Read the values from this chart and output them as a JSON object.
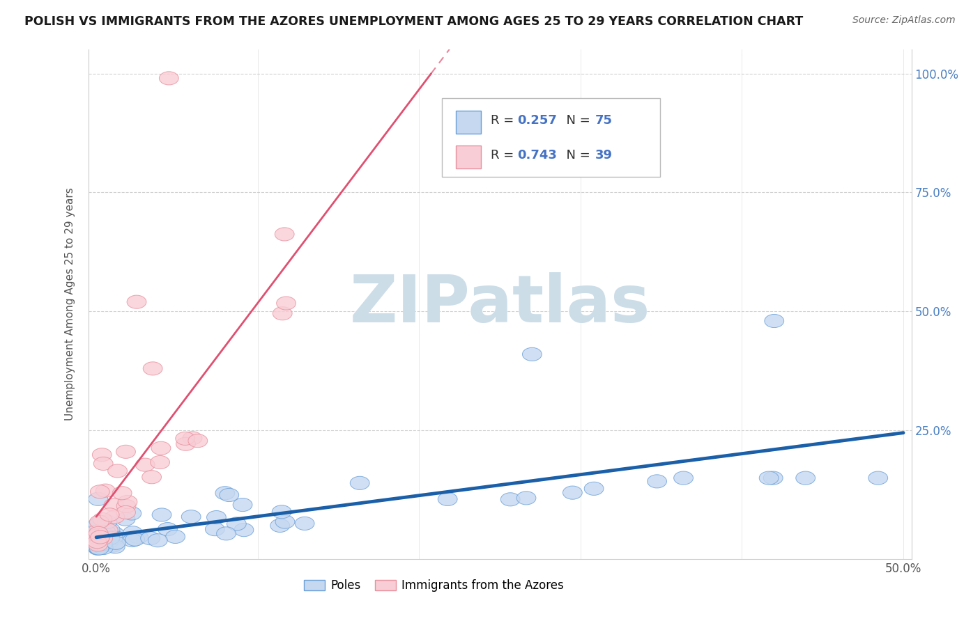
{
  "title": "POLISH VS IMMIGRANTS FROM THE AZORES UNEMPLOYMENT AMONG AGES 25 TO 29 YEARS CORRELATION CHART",
  "source": "Source: ZipAtlas.com",
  "ylabel": "Unemployment Among Ages 25 to 29 years",
  "xlim": [
    -0.005,
    0.505
  ],
  "ylim": [
    -0.02,
    1.05
  ],
  "xtick_vals": [
    0.0,
    0.1,
    0.2,
    0.3,
    0.4,
    0.5
  ],
  "xticklabels": [
    "0.0%",
    "",
    "",
    "",
    "",
    "50.0%"
  ],
  "ytick_vals": [
    0.0,
    0.25,
    0.5,
    0.75,
    1.0
  ],
  "yticklabels_right": [
    "",
    "25.0%",
    "50.0%",
    "75.0%",
    "100.0%"
  ],
  "poles_R": 0.257,
  "poles_N": 75,
  "azores_R": 0.743,
  "azores_N": 39,
  "poles_fill_color": "#c5d8f0",
  "poles_edge_color": "#6a9fd8",
  "azores_fill_color": "#f8cdd5",
  "azores_edge_color": "#e8909d",
  "poles_line_color": "#1a5fa8",
  "azores_line_color": "#e05070",
  "bg_color": "#ffffff",
  "grid_color": "#cccccc",
  "watermark_color": "#ccdde8",
  "title_color": "#1a1a1a",
  "source_color": "#666666",
  "ytick_color": "#4a7fc1",
  "xtick_color": "#555555",
  "legend_text_color": "#333333",
  "legend_num_color": "#4472c4"
}
